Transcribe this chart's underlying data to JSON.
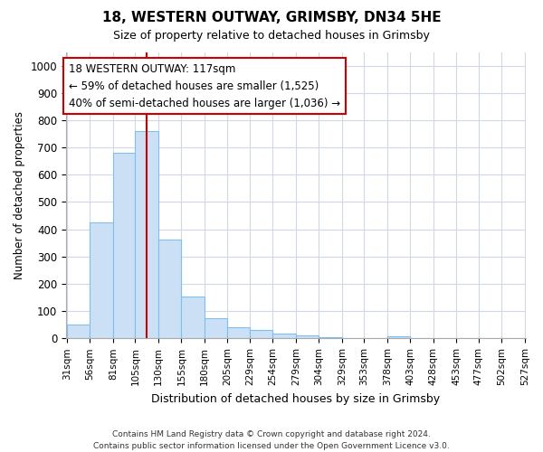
{
  "title1": "18, WESTERN OUTWAY, GRIMSBY, DN34 5HE",
  "title2": "Size of property relative to detached houses in Grimsby",
  "xlabel": "Distribution of detached houses by size in Grimsby",
  "ylabel": "Number of detached properties",
  "bins": [
    31,
    56,
    81,
    105,
    130,
    155,
    180,
    205,
    229,
    254,
    279,
    304,
    329,
    353,
    378,
    403,
    428,
    453,
    477,
    502,
    527
  ],
  "counts": [
    52,
    425,
    680,
    760,
    362,
    152,
    75,
    40,
    30,
    17,
    10,
    5,
    2,
    0,
    8,
    0,
    0,
    0,
    0,
    0
  ],
  "bar_color": "#cce0f5",
  "bar_edge_color": "#7fbfee",
  "vline_x": 117,
  "vline_color": "#cc0000",
  "annotation_text": "18 WESTERN OUTWAY: 117sqm\n← 59% of detached houses are smaller (1,525)\n40% of semi-detached houses are larger (1,036) →",
  "annotation_box_color": "white",
  "annotation_box_edge": "#cc0000",
  "ylim": [
    0,
    1050
  ],
  "yticks": [
    0,
    100,
    200,
    300,
    400,
    500,
    600,
    700,
    800,
    900,
    1000
  ],
  "tick_labels": [
    "31sqm",
    "56sqm",
    "81sqm",
    "105sqm",
    "130sqm",
    "155sqm",
    "180sqm",
    "205sqm",
    "229sqm",
    "254sqm",
    "279sqm",
    "304sqm",
    "329sqm",
    "353sqm",
    "378sqm",
    "403sqm",
    "428sqm",
    "453sqm",
    "477sqm",
    "502sqm",
    "527sqm"
  ],
  "footer": "Contains HM Land Registry data © Crown copyright and database right 2024.\nContains public sector information licensed under the Open Government Licence v3.0.",
  "bg_color": "#ffffff",
  "plot_bg_color": "#ffffff",
  "grid_color": "#d0d8e8"
}
